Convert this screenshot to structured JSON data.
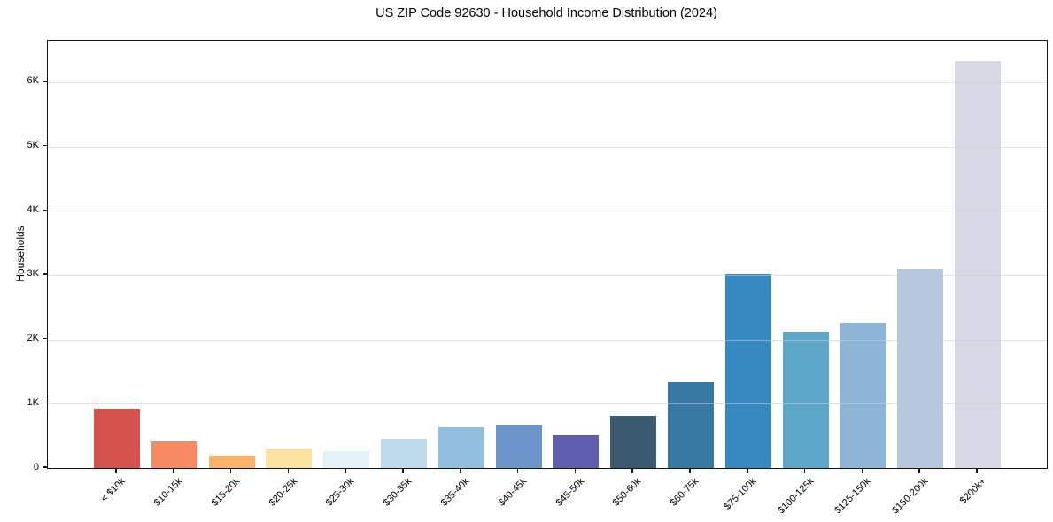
{
  "chart_data": {
    "type": "bar",
    "title": "US ZIP Code 92630 - Household Income Distribution (2024)",
    "xlabel": "",
    "ylabel": "Households",
    "categories": [
      "< $10k",
      "$10-15k",
      "$15-20k",
      "$20-25k",
      "$25-30k",
      "$30-35k",
      "$35-40k",
      "$40-45k",
      "$45-50k",
      "$50-60k",
      "$60-75k",
      "$75-100k",
      "$100-125k",
      "$125-150k",
      "$150-200k",
      "$200k+"
    ],
    "values": [
      920,
      410,
      195,
      300,
      255,
      450,
      635,
      675,
      510,
      810,
      1330,
      3015,
      2125,
      2250,
      3100,
      6330
    ],
    "bar_colors": [
      "#d5524b",
      "#f68a63",
      "#fab169",
      "#fbe3a1",
      "#e3f2f8",
      "#bfdbeb",
      "#92bedd",
      "#6e95ca",
      "#5f5fad",
      "#3a5a70",
      "#3878a3",
      "#3689c0",
      "#5ca7c8",
      "#8fb5d6",
      "#b7c7dd",
      "#d7d9e6"
    ],
    "ylim": [
      0,
      6645
    ],
    "yticks": {
      "values": [
        0,
        1000,
        2000,
        3000,
        4000,
        5000,
        6000
      ],
      "labels": [
        "0",
        "1K",
        "2K",
        "3K",
        "4K",
        "5K",
        "6K"
      ]
    },
    "grid": "horizontal-light",
    "legend": "none",
    "colors": {
      "background": "#ffffff",
      "spine": "#141414",
      "gridline": "#e9e9ee",
      "text": "#000000"
    }
  }
}
